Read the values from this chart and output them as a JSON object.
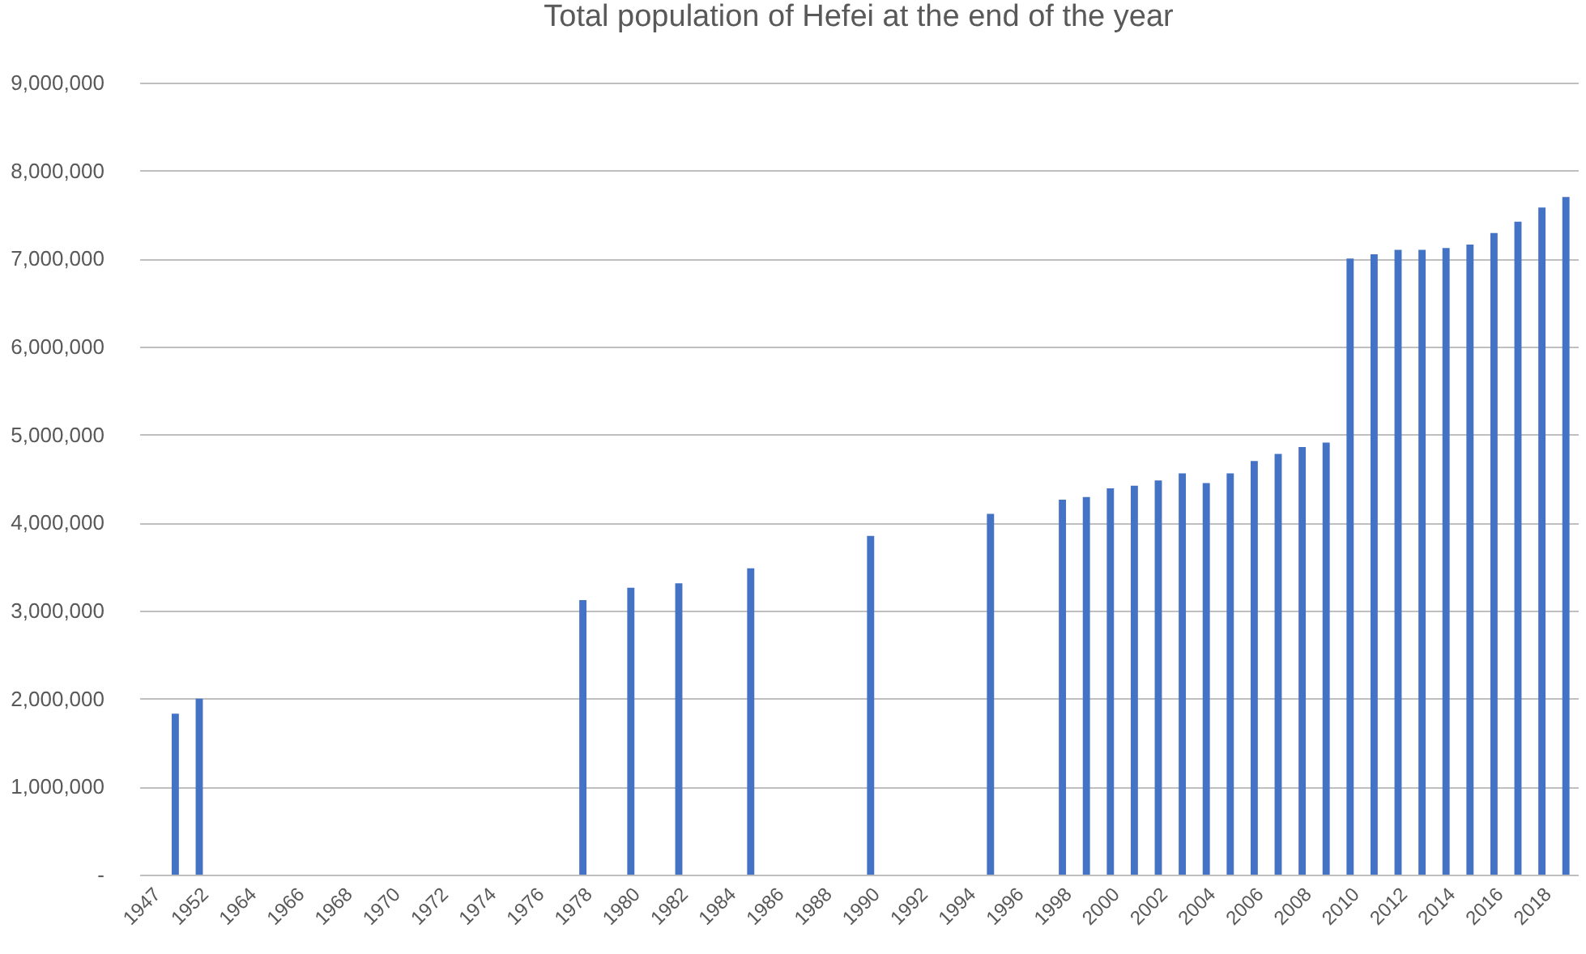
{
  "chart_data": {
    "type": "bar",
    "title": "Total population of Hefei at the end of the year",
    "categories": [
      "1947",
      null,
      "1952",
      null,
      "1964",
      null,
      "1966",
      null,
      "1968",
      null,
      "1970",
      null,
      "1972",
      null,
      "1974",
      null,
      "1976",
      null,
      "1978",
      null,
      "1980",
      null,
      "1982",
      null,
      "1984",
      null,
      "1986",
      null,
      "1988",
      null,
      "1990",
      null,
      "1992",
      null,
      "1994",
      null,
      "1996",
      null,
      "1998",
      null,
      "2000",
      null,
      "2002",
      null,
      "2004",
      null,
      "2006",
      null,
      "2008",
      null,
      "2010",
      null,
      "2012",
      null,
      "2014",
      null,
      "2016",
      null,
      "2018",
      null
    ],
    "series": [
      {
        "color": "#4472c4",
        "values": [
          null,
          1830000,
          2000000,
          null,
          null,
          null,
          null,
          null,
          null,
          null,
          null,
          null,
          null,
          null,
          null,
          null,
          null,
          null,
          3120000,
          null,
          3260000,
          null,
          3310000,
          null,
          null,
          3480000,
          null,
          null,
          null,
          null,
          3850000,
          null,
          null,
          null,
          null,
          4100000,
          null,
          null,
          4260000,
          4290000,
          4390000,
          4420000,
          4480000,
          4560000,
          4450000,
          4560000,
          4700000,
          4780000,
          4860000,
          4910000,
          7000000,
          7050000,
          7100000,
          7100000,
          7120000,
          7160000,
          7290000,
          7420000,
          7580000,
          7700000
        ]
      }
    ],
    "ylim": [
      0,
      9000000
    ],
    "yticks": [
      {
        "value": 0,
        "label": "-"
      },
      {
        "value": 1000000,
        "label": "1,000,000"
      },
      {
        "value": 2000000,
        "label": "2,000,000"
      },
      {
        "value": 3000000,
        "label": "3,000,000"
      },
      {
        "value": 4000000,
        "label": "4,000,000"
      },
      {
        "value": 5000000,
        "label": "5,000,000"
      },
      {
        "value": 6000000,
        "label": "6,000,000"
      },
      {
        "value": 7000000,
        "label": "7,000,000"
      },
      {
        "value": 8000000,
        "label": "8,000,000"
      },
      {
        "value": 9000000,
        "label": "9,000,000"
      }
    ],
    "grid": "y"
  }
}
